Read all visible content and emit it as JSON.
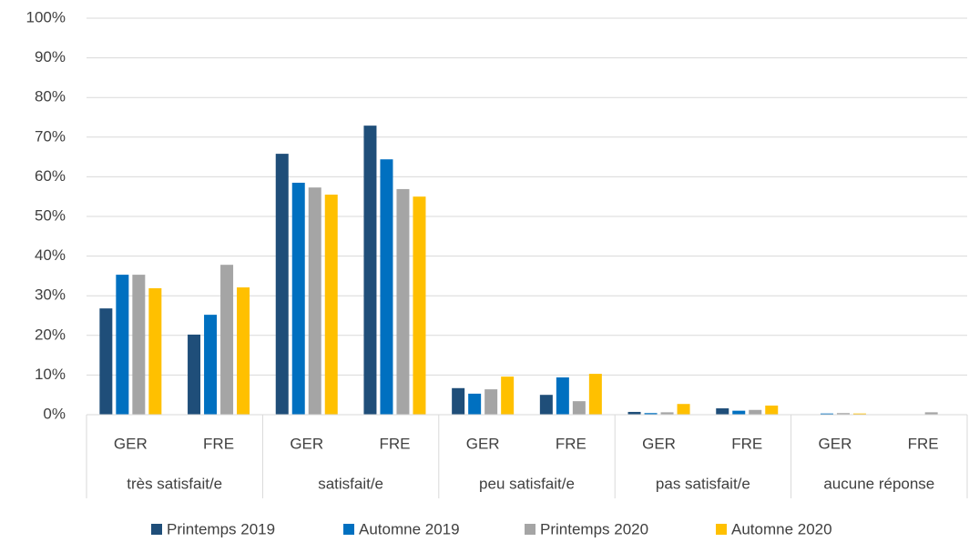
{
  "chart_data": {
    "type": "bar",
    "categories": [
      "GER",
      "FRE",
      "GER",
      "FRE",
      "GER",
      "FRE",
      "GER",
      "FRE",
      "GER",
      "FRE"
    ],
    "groups": [
      "très satisfait/e",
      "satisfait/e",
      "peu satisfait/e",
      "pas satisfait/e",
      "aucune réponse"
    ],
    "series": [
      {
        "name": "Printemps 2019",
        "color": "#1f4e79",
        "values": [
          26.8,
          20.2,
          65.8,
          72.9,
          6.7,
          5.0,
          0.7,
          1.6,
          0,
          0
        ]
      },
      {
        "name": "Automne 2019",
        "color": "#0070c0",
        "values": [
          35.3,
          25.2,
          58.5,
          64.4,
          5.3,
          9.4,
          0.4,
          1.0,
          0.3,
          0
        ]
      },
      {
        "name": "Printemps 2020",
        "color": "#a5a5a5",
        "values": [
          35.3,
          37.8,
          57.3,
          56.9,
          6.4,
          3.4,
          0.6,
          1.2,
          0.4,
          0.6
        ]
      },
      {
        "name": "Automne 2020",
        "color": "#ffc000",
        "values": [
          31.9,
          32.1,
          55.5,
          55.0,
          9.6,
          10.3,
          2.7,
          2.3,
          0.3,
          0
        ]
      }
    ],
    "ylim": [
      0,
      100
    ],
    "yticks": [
      {
        "value": 0,
        "label": "0%"
      },
      {
        "value": 10,
        "label": "10%"
      },
      {
        "value": 20,
        "label": "20%"
      },
      {
        "value": 30,
        "label": "30%"
      },
      {
        "value": 40,
        "label": "40%"
      },
      {
        "value": 50,
        "label": "50%"
      },
      {
        "value": 60,
        "label": "60%"
      },
      {
        "value": 70,
        "label": "70%"
      },
      {
        "value": 80,
        "label": "80%"
      },
      {
        "value": 90,
        "label": "90%"
      },
      {
        "value": 100,
        "label": "100%"
      }
    ],
    "grid": true,
    "legend": "bottom"
  }
}
